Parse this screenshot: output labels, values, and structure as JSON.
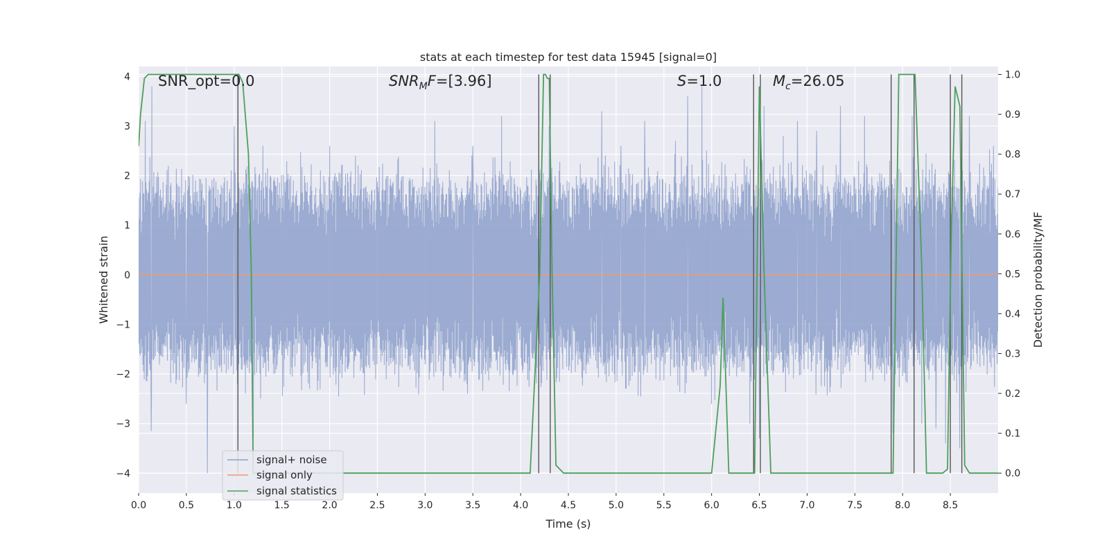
{
  "chart_data": {
    "type": "line",
    "title": "stats at each timestep for test data 15945 [signal=0]",
    "xlabel": "Time (s)",
    "ylabel": "Whitened strain",
    "ylabel_right": "Detection probability/MF",
    "xlim": [
      0.0,
      9.0
    ],
    "ylim": [
      -4.4,
      4.2
    ],
    "ylim_right": [
      -0.05,
      1.02
    ],
    "x_ticks": [
      "0.0",
      "0.5",
      "1.0",
      "1.5",
      "2.0",
      "2.5",
      "3.0",
      "3.5",
      "4.0",
      "4.5",
      "5.0",
      "5.5",
      "6.0",
      "6.5",
      "7.0",
      "7.5",
      "8.0",
      "8.5"
    ],
    "x_tick_values": [
      0.0,
      0.5,
      1.0,
      1.5,
      2.0,
      2.5,
      3.0,
      3.5,
      4.0,
      4.5,
      5.0,
      5.5,
      6.0,
      6.5,
      7.0,
      7.5,
      8.0,
      8.5
    ],
    "y_ticks": [
      "−4",
      "−3",
      "−2",
      "−1",
      "0",
      "1",
      "2",
      "3",
      "4"
    ],
    "y_tick_values": [
      -4,
      -3,
      -2,
      -1,
      0,
      1,
      2,
      3,
      4
    ],
    "y_ticks_right": [
      "0.0",
      "0.1",
      "0.2",
      "0.3",
      "0.4",
      "0.5",
      "0.6",
      "0.7",
      "0.8",
      "0.9",
      "1.0"
    ],
    "y_tick_values_right": [
      0.0,
      0.1,
      0.2,
      0.3,
      0.4,
      0.5,
      0.6,
      0.7,
      0.8,
      0.9,
      1.0
    ],
    "grid": true,
    "legend_position": "lower-left",
    "annotations": {
      "snr_opt": "SNR_opt=0.0",
      "snr_mf": "[3.96]",
      "s": "1.0",
      "mc": "26.05"
    },
    "series": [
      {
        "name": "signal+ noise",
        "color": "#8da0cb",
        "axis": "left",
        "description_values": {
          "typical_amplitude": 1.6,
          "spike_max": 3.8,
          "spike_min": -4.0
        },
        "spikes": [
          [
            0.14,
            -2.9
          ],
          [
            0.13,
            -3.15
          ],
          [
            0.14,
            3.8
          ],
          [
            0.07,
            3.1
          ],
          [
            0.5,
            -2.6
          ],
          [
            0.72,
            -4.0
          ],
          [
            1.0,
            3.0
          ],
          [
            1.2,
            -3.3
          ],
          [
            1.3,
            2.6
          ],
          [
            2.0,
            2.6
          ],
          [
            2.27,
            2.4
          ],
          [
            3.1,
            3.1
          ],
          [
            3.5,
            2.6
          ],
          [
            3.8,
            3.2
          ],
          [
            4.3,
            3.0
          ],
          [
            4.85,
            3.3
          ],
          [
            5.05,
            2.6
          ],
          [
            5.3,
            3.1
          ],
          [
            5.62,
            2.7
          ],
          [
            5.75,
            3.6
          ],
          [
            5.9,
            3.8
          ],
          [
            6.0,
            -2.6
          ],
          [
            6.4,
            -3.0
          ],
          [
            6.5,
            -3.3
          ],
          [
            6.55,
            3.4
          ],
          [
            6.75,
            2.8
          ],
          [
            6.9,
            3.1
          ],
          [
            7.1,
            2.9
          ],
          [
            7.35,
            3.4
          ],
          [
            7.6,
            3.2
          ],
          [
            7.9,
            -3.2
          ],
          [
            8.1,
            3.2
          ],
          [
            8.2,
            -3.0
          ],
          [
            8.35,
            -3.1
          ],
          [
            8.45,
            -3.4
          ],
          [
            8.6,
            -3.5
          ],
          [
            8.7,
            3.2
          ],
          [
            8.95,
            2.6
          ]
        ]
      },
      {
        "name": "signal only",
        "color": "#e99975",
        "axis": "left",
        "values_x": [
          0.0,
          9.0
        ],
        "values_y": [
          0.0,
          0.0
        ]
      },
      {
        "name": "signal statistics",
        "color": "#4c9f5b",
        "axis": "right",
        "values_x": [
          0.0,
          0.02,
          0.06,
          0.1,
          0.15,
          0.2,
          1.05,
          1.09,
          1.15,
          1.18,
          1.2,
          1.24,
          1.26,
          1.3,
          4.1,
          4.2,
          4.24,
          4.26,
          4.28,
          4.3,
          4.33,
          4.37,
          4.45,
          4.5,
          6.0,
          6.09,
          6.12,
          6.18,
          6.24,
          6.3,
          6.38,
          6.45,
          6.5,
          6.55,
          6.62,
          6.66,
          7.82,
          7.9,
          7.96,
          8.0,
          8.07,
          8.13,
          8.2,
          8.25,
          8.3,
          8.42,
          8.47,
          8.51,
          8.55,
          8.6,
          8.65,
          8.7,
          8.79,
          8.88,
          9.0
        ],
        "values_y": [
          0.82,
          0.9,
          0.99,
          1.0,
          1.0,
          1.0,
          1.0,
          0.98,
          0.8,
          0.5,
          0.0,
          0.0,
          0.0,
          0.0,
          0.0,
          0.5,
          1.0,
          1.0,
          0.99,
          0.99,
          0.5,
          0.02,
          0.0,
          0.0,
          0.0,
          0.22,
          0.44,
          0.0,
          0.0,
          0.0,
          0.0,
          0.0,
          0.97,
          0.5,
          0.0,
          0.0,
          0.0,
          0.0,
          1.0,
          1.0,
          1.0,
          1.0,
          0.52,
          0.0,
          0.0,
          0.0,
          0.01,
          0.6,
          0.97,
          0.92,
          0.02,
          0.0,
          0.0,
          0.0,
          0.0
        ]
      }
    ],
    "vertical_lines_x": [
      1.04,
      4.19,
      4.31,
      6.44,
      6.51,
      7.88,
      8.12,
      8.5,
      8.62
    ]
  }
}
